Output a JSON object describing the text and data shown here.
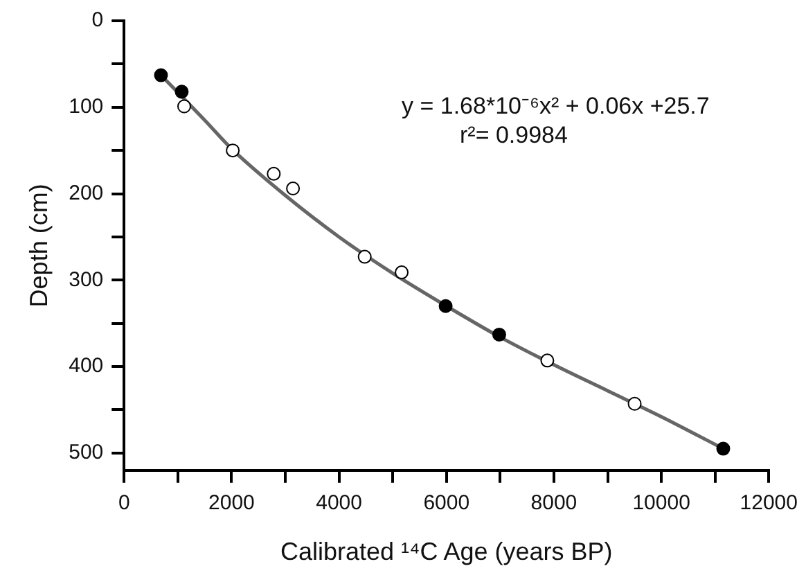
{
  "chart_data": {
    "type": "scatter",
    "xlabel": "Calibrated ¹⁴C Age (years BP)",
    "ylabel": "Depth (cm)",
    "xlim": [
      0,
      12000
    ],
    "ylim": [
      520,
      0
    ],
    "xticks": [
      0,
      {
        "value": 1000,
        "label": null
      },
      2000,
      {
        "value": 3000,
        "label": null
      },
      4000,
      {
        "value": 5000,
        "label": null
      },
      6000,
      {
        "value": 7000,
        "label": null
      },
      8000,
      {
        "value": 9000,
        "label": null
      },
      10000,
      {
        "value": 11000,
        "label": null
      },
      12000
    ],
    "yticks": [
      0,
      {
        "value": 50,
        "label": null
      },
      100,
      {
        "value": 150,
        "label": null
      },
      200,
      {
        "value": 250,
        "label": null
      },
      300,
      {
        "value": 350,
        "label": null
      },
      400,
      {
        "value": 450,
        "label": null
      },
      500
    ],
    "grid": false,
    "legend": false,
    "series": [
      {
        "type": "line",
        "color": "#666666",
        "marker": "none",
        "line_style": "solid",
        "x": [
          686,
          1500,
          2000,
          3000,
          4000,
          5000,
          6000,
          7000,
          8000,
          9000,
          10000,
          11152
        ],
        "values": [
          63,
          115,
          148,
          202,
          250,
          292,
          330,
          366,
          398,
          428,
          458,
          495
        ]
      },
      {
        "color": "#000000",
        "marker": "circle",
        "x": [
          686,
          1072,
          5985,
          6982,
          11152
        ],
        "values": [
          63,
          82,
          330,
          363,
          495
        ]
      },
      {
        "color": "#000000",
        "marker": "circle-open",
        "x": [
          1118,
          2022,
          2785,
          3143,
          4478,
          5166,
          7877,
          9503
        ],
        "values": [
          99,
          150,
          177,
          194,
          273,
          291,
          393,
          443
        ]
      }
    ],
    "annotations": [
      "y = 1.68*10⁻⁶x² + 0.06x +25.7",
      "r²= 0.9984"
    ]
  }
}
